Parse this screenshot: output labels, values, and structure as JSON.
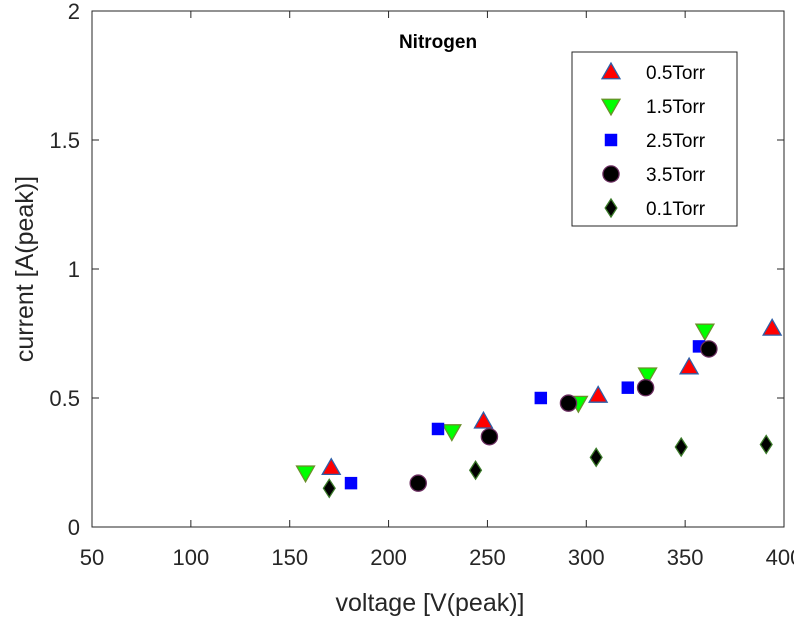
{
  "chart_data": {
    "type": "scatter",
    "title": "Nitrogen",
    "xlabel": "voltage [V(peak)]",
    "ylabel": "current [A(peak)]",
    "xlim": [
      50,
      400
    ],
    "ylim": [
      0,
      2
    ],
    "xticks": [
      "50",
      "100",
      "150",
      "200",
      "250",
      "300",
      "350",
      "400"
    ],
    "yticks": [
      "0",
      "0.5",
      "1",
      "1.5",
      "2"
    ],
    "grid": false,
    "legend_position": "top-right",
    "series": [
      {
        "name": "0.5Torr",
        "marker": "triangle-up",
        "color": "#ff0000",
        "edge": "#2e5fa8",
        "points": [
          [
            171,
            0.23
          ],
          [
            248,
            0.41
          ],
          [
            306,
            0.51
          ],
          [
            352,
            0.62
          ],
          [
            394,
            0.77
          ]
        ]
      },
      {
        "name": "1.5Torr",
        "marker": "triangle-down",
        "color": "#00ff00",
        "edge": "#6a8f2a",
        "points": [
          [
            158,
            0.21
          ],
          [
            232,
            0.37
          ],
          [
            296,
            0.48
          ],
          [
            331,
            0.59
          ],
          [
            360,
            0.76
          ]
        ]
      },
      {
        "name": "2.5Torr",
        "marker": "square",
        "color": "#0000ff",
        "edge": "#0000ff",
        "points": [
          [
            181,
            0.17
          ],
          [
            225,
            0.38
          ],
          [
            277,
            0.5
          ],
          [
            321,
            0.54
          ],
          [
            357,
            0.7
          ]
        ]
      },
      {
        "name": "3.5Torr",
        "marker": "circle",
        "color": "#000000",
        "edge": "#6a2d5f",
        "points": [
          [
            215,
            0.17
          ],
          [
            251,
            0.35
          ],
          [
            291,
            0.48
          ],
          [
            330,
            0.54
          ],
          [
            362,
            0.69
          ]
        ]
      },
      {
        "name": "0.1Torr",
        "marker": "diamond",
        "color": "#000000",
        "edge": "#3b7a2a",
        "points": [
          [
            170,
            0.15
          ],
          [
            244,
            0.22
          ],
          [
            305,
            0.27
          ],
          [
            348,
            0.31
          ],
          [
            391,
            0.32
          ]
        ]
      }
    ]
  }
}
